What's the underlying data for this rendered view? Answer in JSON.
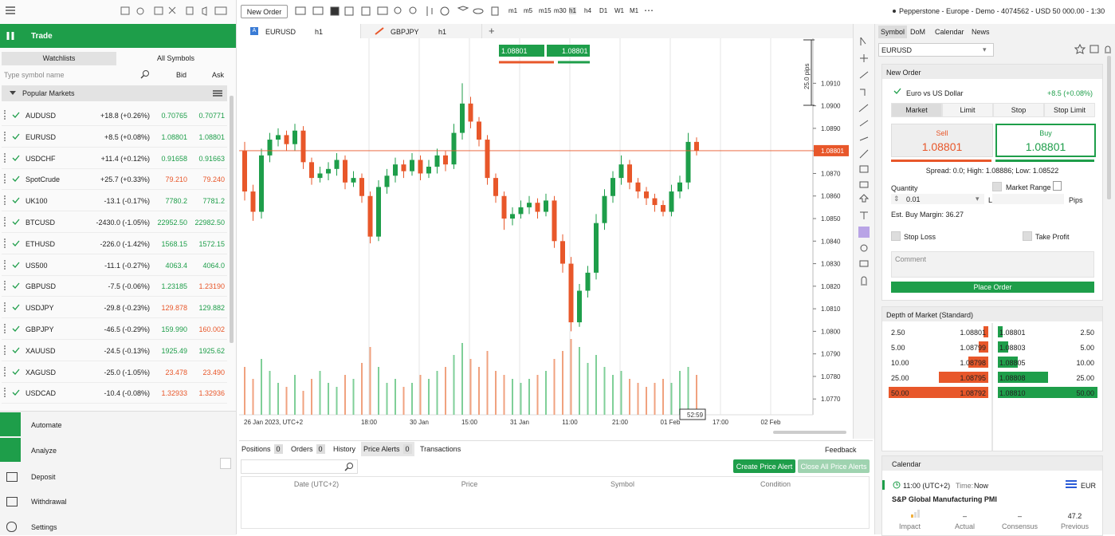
{
  "toolbar": {
    "new_order": "New Order",
    "timeframes": [
      "m1",
      "m5",
      "m15",
      "m30",
      "h1",
      "h4",
      "D1",
      "W1",
      "M1"
    ],
    "account": "Pepperstone - Europe - Demo - 4074562 - USD 50 000.00 - 1:30"
  },
  "sidebar": {
    "trade": "Trade",
    "tabs": [
      "Watchlists",
      "All Symbols"
    ],
    "search_placeholder": "Type symbol name",
    "columns": [
      "Bid",
      "Ask"
    ],
    "group": "Popular Markets",
    "rows": [
      {
        "symbol": "AUDUSD",
        "change": "+18.8 (+0.26%)",
        "bid": "0.70765",
        "ask": "0.70771",
        "bid_color": "#1e9e4a",
        "ask_color": "#1e9e4a"
      },
      {
        "symbol": "EURUSD",
        "change": "+8.5 (+0.08%)",
        "bid": "1.08801",
        "ask": "1.08801",
        "bid_color": "#1e9e4a",
        "ask_color": "#1e9e4a"
      },
      {
        "symbol": "USDCHF",
        "change": "+11.4 (+0.12%)",
        "bid": "0.91658",
        "ask": "0.91663",
        "bid_color": "#1e9e4a",
        "ask_color": "#1e9e4a"
      },
      {
        "symbol": "SpotCrude",
        "change": "+25.7 (+0.33%)",
        "bid": "79.210",
        "ask": "79.240",
        "bid_color": "#e8572a",
        "ask_color": "#e8572a"
      },
      {
        "symbol": "UK100",
        "change": "-13.1 (-0.17%)",
        "bid": "7780.2",
        "ask": "7781.2",
        "bid_color": "#1e9e4a",
        "ask_color": "#1e9e4a"
      },
      {
        "symbol": "BTCUSD",
        "change": "-2430.0 (-1.05%)",
        "bid": "22952.50",
        "ask": "22982.50",
        "bid_color": "#1e9e4a",
        "ask_color": "#1e9e4a"
      },
      {
        "symbol": "ETHUSD",
        "change": "-226.0 (-1.42%)",
        "bid": "1568.15",
        "ask": "1572.15",
        "bid_color": "#1e9e4a",
        "ask_color": "#1e9e4a"
      },
      {
        "symbol": "US500",
        "change": "-11.1 (-0.27%)",
        "bid": "4063.4",
        "ask": "4064.0",
        "bid_color": "#1e9e4a",
        "ask_color": "#1e9e4a"
      },
      {
        "symbol": "GBPUSD",
        "change": "-7.5 (-0.06%)",
        "bid": "1.23185",
        "ask": "1.23190",
        "bid_color": "#1e9e4a",
        "ask_color": "#e8572a"
      },
      {
        "symbol": "USDJPY",
        "change": "-29.8 (-0.23%)",
        "bid": "129.878",
        "ask": "129.882",
        "bid_color": "#e8572a",
        "ask_color": "#1e9e4a"
      },
      {
        "symbol": "GBPJPY",
        "change": "-46.5 (-0.29%)",
        "bid": "159.990",
        "ask": "160.002",
        "bid_color": "#1e9e4a",
        "ask_color": "#e8572a"
      },
      {
        "symbol": "XAUUSD",
        "change": "-24.5 (-0.13%)",
        "bid": "1925.49",
        "ask": "1925.62",
        "bid_color": "#1e9e4a",
        "ask_color": "#1e9e4a"
      },
      {
        "symbol": "XAGUSD",
        "change": "-25.0 (-1.05%)",
        "bid": "23.478",
        "ask": "23.490",
        "bid_color": "#e8572a",
        "ask_color": "#e8572a"
      },
      {
        "symbol": "USDCAD",
        "change": "-10.4 (-0.08%)",
        "bid": "1.32933",
        "ask": "1.32936",
        "bid_color": "#e8572a",
        "ask_color": "#e8572a"
      }
    ],
    "nav": [
      "Automate",
      "Analyze",
      "Deposit",
      "Withdrawal",
      "Settings"
    ]
  },
  "chart_tabs": [
    {
      "symbol": "EURUSD",
      "timeframe": "h1"
    },
    {
      "symbol": "GBPJPY",
      "timeframe": "h1"
    }
  ],
  "chart_data": {
    "type": "candlestick",
    "up_color": "#1e9e4a",
    "down_color": "#e8572a",
    "open": [
      1.088,
      1.0862,
      1.0853,
      1.0878,
      1.0885,
      1.0887,
      1.0883,
      1.0889,
      1.0875,
      1.0868,
      1.087,
      1.0872,
      1.0876,
      1.0866,
      1.0868,
      1.086,
      1.0842,
      1.0864,
      1.0869,
      1.0874,
      1.0871,
      1.0876,
      1.087,
      1.0873,
      1.0878,
      1.0874,
      1.0888,
      1.0901,
      1.0893,
      1.0885,
      1.0868,
      1.086,
      1.085,
      1.0852,
      1.0855,
      1.0857,
      1.0853,
      1.0858,
      1.084,
      1.083,
      1.0804,
      1.0818,
      1.0826,
      1.0848,
      1.086,
      1.0868,
      1.0874,
      1.0866,
      1.0862,
      1.0859,
      1.0856,
      1.0853,
      1.0862,
      1.0866,
      1.0884
    ],
    "high": [
      1.0884,
      1.0865,
      1.0881,
      1.0888,
      1.089,
      1.0889,
      1.0892,
      1.0891,
      1.0877,
      1.0873,
      1.0875,
      1.0879,
      1.0878,
      1.0871,
      1.087,
      1.0862,
      1.0867,
      1.0872,
      1.0877,
      1.0876,
      1.0879,
      1.0878,
      1.0876,
      1.0881,
      1.088,
      1.0892,
      1.091,
      1.0904,
      1.0895,
      1.0887,
      1.087,
      1.0862,
      1.0855,
      1.0858,
      1.086,
      1.0859,
      1.0861,
      1.086,
      1.0843,
      1.0833,
      1.0821,
      1.0829,
      1.0852,
      1.0863,
      1.0871,
      1.0878,
      1.0876,
      1.0868,
      1.0864,
      1.0861,
      1.0858,
      1.0865,
      1.0869,
      1.0888,
      1.0886
    ],
    "low": [
      1.0858,
      1.0849,
      1.085,
      1.0875,
      1.0882,
      1.088,
      1.088,
      1.0872,
      1.0865,
      1.0866,
      1.0867,
      1.0869,
      1.0863,
      1.0864,
      1.0857,
      1.0839,
      1.084,
      1.0861,
      1.0866,
      1.0868,
      1.0869,
      1.0867,
      1.0868,
      1.087,
      1.0871,
      1.0872,
      1.0885,
      1.089,
      1.0882,
      1.0865,
      1.0857,
      1.0845,
      1.0847,
      1.085,
      1.0852,
      1.085,
      1.0851,
      1.0837,
      1.0826,
      1.08,
      1.0802,
      1.0815,
      1.0823,
      1.0845,
      1.0857,
      1.0865,
      1.0863,
      1.0859,
      1.0856,
      1.0853,
      1.0851,
      1.0851,
      1.0859,
      1.0863,
      1.0878
    ],
    "close": [
      1.0862,
      1.0853,
      1.0878,
      1.0885,
      1.0887,
      1.0883,
      1.0889,
      1.0875,
      1.0868,
      1.087,
      1.0872,
      1.0876,
      1.0866,
      1.0868,
      1.086,
      1.0842,
      1.0864,
      1.0869,
      1.0874,
      1.0871,
      1.0876,
      1.087,
      1.0873,
      1.0878,
      1.0874,
      1.0888,
      1.0901,
      1.0893,
      1.0885,
      1.0868,
      1.086,
      1.085,
      1.0852,
      1.0855,
      1.0857,
      1.0853,
      1.0858,
      1.084,
      1.083,
      1.0804,
      1.0818,
      1.0826,
      1.0848,
      1.086,
      1.0868,
      1.0874,
      1.0866,
      1.0862,
      1.0859,
      1.0856,
      1.0853,
      1.0862,
      1.0866,
      1.0884,
      1.08801
    ],
    "volume": [
      60,
      45,
      70,
      55,
      40,
      35,
      50,
      30,
      45,
      55,
      40,
      35,
      50,
      45,
      65,
      85,
      60,
      40,
      45,
      35,
      40,
      50,
      45,
      55,
      60,
      75,
      90,
      70,
      60,
      80,
      55,
      50,
      45,
      40,
      45,
      50,
      55,
      70,
      80,
      95,
      85,
      65,
      75,
      60,
      50,
      55,
      45,
      40,
      35,
      40,
      45,
      40,
      55,
      60,
      50
    ],
    "ylim": [
      1.0763,
      1.0931
    ],
    "yticks": [
      {
        "value": 1.077,
        "label": "1.0770"
      },
      {
        "value": 1.078,
        "label": "1.0780"
      },
      {
        "value": 1.079,
        "label": "1.0790"
      },
      {
        "value": 1.08,
        "label": "1.0800"
      },
      {
        "value": 1.081,
        "label": "1.0810"
      },
      {
        "value": 1.082,
        "label": "1.0820"
      },
      {
        "value": 1.083,
        "label": "1.0830"
      },
      {
        "value": 1.084,
        "label": "1.0840"
      },
      {
        "value": 1.085,
        "label": "1.0850"
      },
      {
        "value": 1.086,
        "label": "1.0860"
      },
      {
        "value": 1.087,
        "label": "1.0870"
      },
      {
        "value": 1.088,
        "label": "1.0880"
      },
      {
        "value": 1.089,
        "label": "1.0890"
      },
      {
        "value": 1.09,
        "label": "1.0900"
      },
      {
        "value": 1.091,
        "label": "1.0910"
      }
    ],
    "current_price": 1.08801,
    "current_price_label": "1.08801",
    "x_labels": [
      "26 Jan 2023, UTC+2",
      "18:00",
      "30 Jan",
      "15:00",
      "31 Jan",
      "11:00",
      "21:00",
      "01 Feb",
      "17:00",
      "02 Feb"
    ],
    "sell_quote": "1.08801",
    "buy_quote": "1.08801",
    "measure_label": "25.0 pips",
    "countdown": "52:59"
  },
  "bottom_panel": {
    "tabs": [
      {
        "label": "Positions",
        "count": 0
      },
      {
        "label": "Orders",
        "count": 0
      },
      {
        "label": "History"
      },
      {
        "label": "Price Alerts",
        "count": 0
      },
      {
        "label": "Transactions"
      }
    ],
    "feedback": "Feedback",
    "create_alert": "Create Price Alert",
    "close_alerts": "Close All Price Alerts",
    "columns": [
      "Date (UTC+2)",
      "Price",
      "Symbol",
      "Condition"
    ]
  },
  "right_panel": {
    "tabs": [
      "Symbol",
      "DoM",
      "Calendar",
      "News"
    ],
    "symbol": "EURUSD",
    "new_order": {
      "title": "New Order",
      "description": "Euro vs US Dollar",
      "change": "+8.5 (+0.08%)",
      "order_types": [
        "Market",
        "Limit",
        "Stop",
        "Stop Limit"
      ],
      "sell_label": "Sell",
      "sell_price": "1.08801",
      "buy_label": "Buy",
      "buy_price": "1.08801",
      "spread": "Spread: 0.0; High: 1.08886; Low: 1.08522",
      "quantity_label": "Quantity",
      "quantity": "0.01",
      "lots": "Lots",
      "market_range": "Market Range",
      "pips": "Pips",
      "margin": "Est. Buy Margin: 36.27",
      "stop_loss": "Stop Loss",
      "take_profit": "Take Profit",
      "comment": "Comment",
      "place_order": "Place Order"
    },
    "dom": {
      "title": "Depth of Market (Standard)",
      "bids": [
        {
          "volume": {
            "value": 2.5,
            "label": "2.50"
          },
          "price": "1.08801"
        },
        {
          "volume": {
            "value": 5,
            "label": "5.00"
          },
          "price": "1.08799"
        },
        {
          "volume": {
            "value": 10,
            "label": "10.00"
          },
          "price": "1.08798"
        },
        {
          "volume": {
            "value": 25,
            "label": "25.00"
          },
          "price": "1.08795"
        },
        {
          "volume": {
            "value": 50,
            "label": "50.00"
          },
          "price": "1.08792"
        }
      ],
      "asks": [
        {
          "volume": {
            "value": 2.5,
            "label": "2.50"
          },
          "price": "1.08801"
        },
        {
          "volume": {
            "value": 5,
            "label": "5.00"
          },
          "price": "1.08803"
        },
        {
          "volume": {
            "value": 10,
            "label": "10.00"
          },
          "price": "1.08805"
        },
        {
          "volume": {
            "value": 25,
            "label": "25.00"
          },
          "price": "1.08808"
        },
        {
          "volume": {
            "value": 50,
            "label": "50.00"
          },
          "price": "1.08810"
        }
      ]
    },
    "calendar": {
      "title": "Calendar",
      "time": "11:00 (UTC+2)",
      "time_label": "Time:",
      "time_value": "Now",
      "currency": "EUR",
      "event": "S&P Global Manufacturing PMI",
      "columns": [
        "Impact",
        "Actual",
        "Consensus",
        "Previous"
      ],
      "values": [
        "–",
        "–",
        "47.2"
      ]
    }
  }
}
